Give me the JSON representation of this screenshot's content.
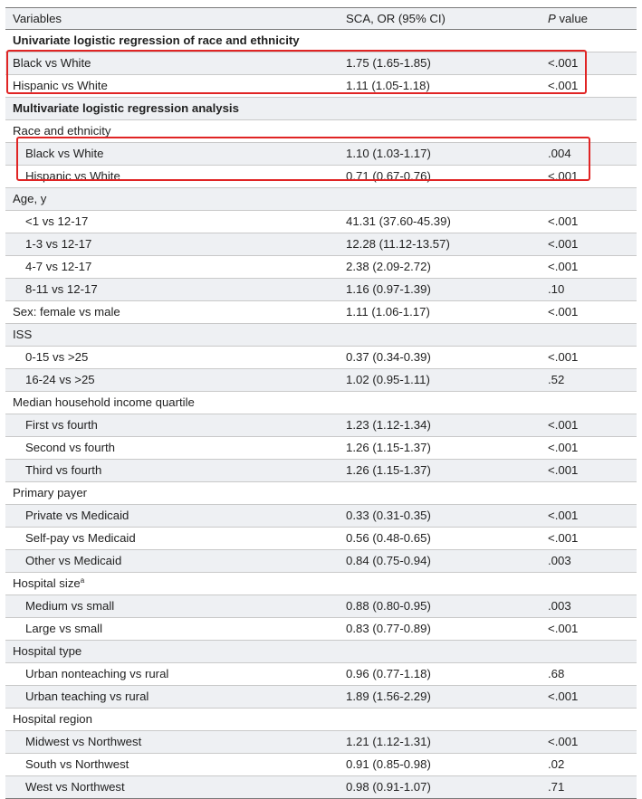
{
  "header": {
    "variables": "Variables",
    "sca_or": "SCA, OR (95% CI)",
    "p_italic": "P",
    "p_rest": " value"
  },
  "rows": [
    {
      "type": "section",
      "label": "Univariate logistic regression of race and ethnicity"
    },
    {
      "type": "data",
      "label": "Black vs White",
      "or": "1.75 (1.65-1.85)",
      "p": "<.001",
      "indent": false
    },
    {
      "type": "data",
      "label": "Hispanic vs White",
      "or": "1.11 (1.05-1.18)",
      "p": "<.001",
      "indent": false
    },
    {
      "type": "section",
      "label": "Multivariate logistic regression analysis"
    },
    {
      "type": "group",
      "label": "Race and ethnicity"
    },
    {
      "type": "data",
      "label": "Black vs White",
      "or": "1.10 (1.03-1.17)",
      "p": ".004",
      "indent": true
    },
    {
      "type": "data",
      "label": "Hispanic vs White",
      "or": "0.71 (0.67-0.76)",
      "p": "<.001",
      "indent": true
    },
    {
      "type": "group",
      "label": "Age, y"
    },
    {
      "type": "data",
      "label": "<1 vs 12-17",
      "or": "41.31 (37.60-45.39)",
      "p": "<.001",
      "indent": true
    },
    {
      "type": "data",
      "label": "1-3 vs 12-17",
      "or": "12.28 (11.12-13.57)",
      "p": "<.001",
      "indent": true
    },
    {
      "type": "data",
      "label": "4-7 vs 12-17",
      "or": "2.38 (2.09-2.72)",
      "p": "<.001",
      "indent": true
    },
    {
      "type": "data",
      "label": "8-11 vs 12-17",
      "or": "1.16 (0.97-1.39)",
      "p": ".10",
      "indent": true
    },
    {
      "type": "data",
      "label": "Sex: female vs male",
      "or": "1.11 (1.06-1.17)",
      "p": "<.001",
      "indent": false
    },
    {
      "type": "group",
      "label": "ISS"
    },
    {
      "type": "data",
      "label": "0-15 vs >25",
      "or": "0.37 (0.34-0.39)",
      "p": "<.001",
      "indent": true
    },
    {
      "type": "data",
      "label": "16-24 vs >25",
      "or": "1.02 (0.95-1.11)",
      "p": ".52",
      "indent": true
    },
    {
      "type": "group",
      "label": "Median household income quartile"
    },
    {
      "type": "data",
      "label": "First vs fourth",
      "or": "1.23 (1.12-1.34)",
      "p": "<.001",
      "indent": true
    },
    {
      "type": "data",
      "label": "Second vs fourth",
      "or": "1.26 (1.15-1.37)",
      "p": "<.001",
      "indent": true
    },
    {
      "type": "data",
      "label": "Third vs fourth",
      "or": "1.26 (1.15-1.37)",
      "p": "<.001",
      "indent": true
    },
    {
      "type": "group",
      "label": "Primary payer"
    },
    {
      "type": "data",
      "label": "Private vs Medicaid",
      "or": "0.33 (0.31-0.35)",
      "p": "<.001",
      "indent": true
    },
    {
      "type": "data",
      "label": "Self-pay vs Medicaid",
      "or": "0.56 (0.48-0.65)",
      "p": "<.001",
      "indent": true
    },
    {
      "type": "data",
      "label": "Other vs Medicaid",
      "or": "0.84 (0.75-0.94)",
      "p": ".003",
      "indent": true
    },
    {
      "type": "group",
      "label": "Hospital size",
      "sup": "a"
    },
    {
      "type": "data",
      "label": "Medium vs small",
      "or": "0.88 (0.80-0.95)",
      "p": ".003",
      "indent": true
    },
    {
      "type": "data",
      "label": "Large vs small",
      "or": "0.83 (0.77-0.89)",
      "p": "<.001",
      "indent": true
    },
    {
      "type": "group",
      "label": "Hospital type"
    },
    {
      "type": "data",
      "label": "Urban nonteaching vs rural",
      "or": "0.96 (0.77-1.18)",
      "p": ".68",
      "indent": true
    },
    {
      "type": "data",
      "label": "Urban teaching vs rural",
      "or": "1.89 (1.56-2.29)",
      "p": "<.001",
      "indent": true
    },
    {
      "type": "group",
      "label": "Hospital region"
    },
    {
      "type": "data",
      "label": "Midwest vs Northwest",
      "or": "1.21 (1.12-1.31)",
      "p": "<.001",
      "indent": true
    },
    {
      "type": "data",
      "label": "South vs Northwest",
      "or": "0.91 (0.85-0.98)",
      "p": ".02",
      "indent": true
    },
    {
      "type": "data",
      "label": "West vs Northwest",
      "or": "0.98 (0.91-1.07)",
      "p": ".71",
      "indent": true
    }
  ],
  "colors": {
    "highlight_box": "#e02424",
    "row_shade": "#eef0f3",
    "text": "#222222"
  }
}
